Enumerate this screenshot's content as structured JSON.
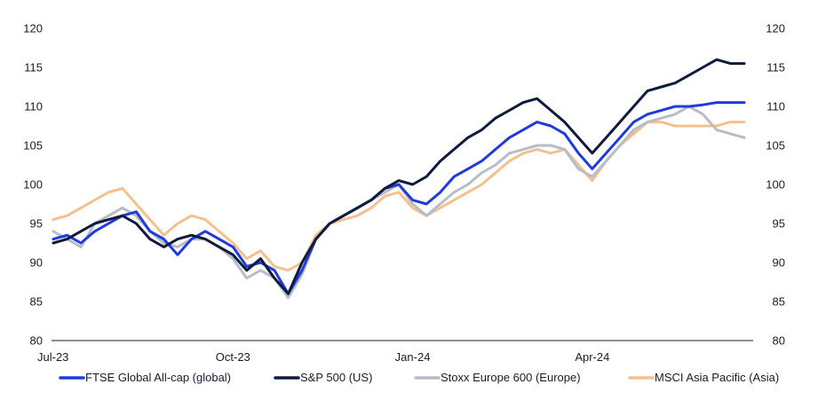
{
  "chart_data": {
    "type": "line",
    "title": "",
    "xlabel": "",
    "ylabel": "",
    "ylim": [
      80,
      120
    ],
    "y_ticks": [
      "80",
      "85",
      "90",
      "95",
      "100",
      "105",
      "110",
      "115",
      "120"
    ],
    "x_ticks": [
      "Jul-23",
      "Oct-23",
      "Jan-24",
      "Apr-24"
    ],
    "x_tick_positions": [
      0,
      13,
      26,
      39
    ],
    "x_count": 51,
    "grid": false,
    "legend_position": "bottom",
    "series": [
      {
        "name": "FTSE Global All-cap (global)",
        "color": "#1f3be0",
        "values": [
          93,
          93.5,
          92.5,
          94,
          95,
          96,
          96.5,
          94,
          93,
          91,
          93,
          94,
          93,
          92,
          89.5,
          90,
          89,
          86,
          89,
          93,
          95,
          96,
          97,
          98,
          99.5,
          100,
          98,
          97.5,
          99,
          101,
          102,
          103,
          104.5,
          106,
          107,
          108,
          107.5,
          106.5,
          104,
          102,
          104,
          106,
          108,
          109,
          109.5,
          110,
          110,
          110.2,
          110.5,
          110.5,
          110.5
        ]
      },
      {
        "name": "S&P 500 (US)",
        "color": "#0f1b3d",
        "values": [
          92.5,
          93,
          94,
          95,
          95.5,
          96,
          95,
          93,
          92,
          93,
          93.5,
          93,
          92,
          91,
          89,
          90.5,
          88,
          86,
          90,
          93,
          95,
          96,
          97,
          98,
          99.5,
          100.5,
          100,
          101,
          103,
          104.5,
          106,
          107,
          108.5,
          109.5,
          110.5,
          111,
          109.5,
          108,
          106,
          104,
          106,
          108,
          110,
          112,
          112.5,
          113,
          114,
          115,
          116,
          115.5,
          115.5
        ]
      },
      {
        "name": "Stoxx Europe 600 (Europe)",
        "color": "#b8bcc6",
        "values": [
          94,
          93,
          92,
          95,
          96,
          97,
          96,
          94,
          92.5,
          92,
          93,
          93,
          92,
          90.5,
          88,
          89,
          88,
          85.5,
          88.5,
          93,
          95,
          96,
          97,
          98,
          99,
          100,
          97.5,
          96,
          97.5,
          99,
          100,
          101.5,
          102.5,
          104,
          104.5,
          105,
          105,
          104.5,
          102,
          101,
          103,
          105,
          107,
          108,
          108.5,
          109,
          110,
          109,
          107,
          106.5,
          106
        ]
      },
      {
        "name": "MSCI Asia Pacific (Asia)",
        "color": "#f4c18e",
        "values": [
          95.5,
          96,
          97,
          98,
          99,
          99.5,
          97.5,
          95.5,
          93.5,
          95,
          96,
          95.5,
          94,
          92.5,
          90.5,
          91.5,
          89.5,
          89,
          90,
          93.5,
          95,
          95.5,
          96,
          97,
          98.5,
          99,
          97,
          96,
          97,
          98,
          99,
          100,
          101.5,
          103,
          104,
          104.5,
          104,
          104.5,
          102.5,
          100.5,
          103,
          105,
          106.5,
          108,
          108,
          107.5,
          107.5,
          107.5,
          107.5,
          108,
          108
        ]
      }
    ]
  }
}
